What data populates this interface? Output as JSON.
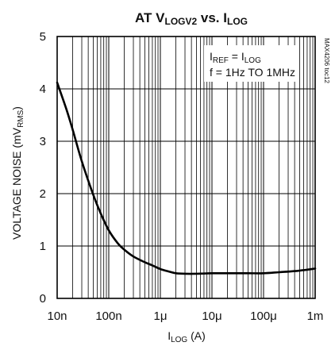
{
  "chart_data": {
    "type": "line",
    "title": {
      "prefix": "AT V",
      "sub": "LOGV2",
      "mid": " vs. I",
      "sub2": "LOG"
    },
    "ylabel": {
      "main": "VOLTAGE NOISE (mV",
      "sub": "RMS",
      "end": ")"
    },
    "xlabel": {
      "main": "I",
      "sub": "LOG",
      "end": " (A)"
    },
    "x_scale": "log",
    "xlim": [
      1e-08,
      0.001
    ],
    "ylim": [
      0,
      5
    ],
    "grid": true,
    "x_ticks": [
      {
        "value": 1e-08,
        "label": "10n"
      },
      {
        "value": 1e-07,
        "label": "100n"
      },
      {
        "value": 1e-06,
        "label": "1μ"
      },
      {
        "value": 1e-05,
        "label": "10μ"
      },
      {
        "value": 0.0001,
        "label": "100μ"
      },
      {
        "value": 0.001,
        "label": "1m"
      }
    ],
    "y_ticks": [
      {
        "value": 0,
        "label": "0"
      },
      {
        "value": 1,
        "label": "1"
      },
      {
        "value": 2,
        "label": "2"
      },
      {
        "value": 3,
        "label": "3"
      },
      {
        "value": 4,
        "label": "4"
      },
      {
        "value": 5,
        "label": "5"
      }
    ],
    "annotations": [
      {
        "main": "I",
        "sub": "REF",
        "end": " = I",
        "sub2": "LOG"
      },
      {
        "main": "f = 1Hz TO 1MHz"
      }
    ],
    "code": "MAX4206 toc12",
    "series": [
      {
        "x": [
          1e-08,
          1.5e-08,
          2e-08,
          3e-08,
          5e-08,
          7e-08,
          1e-07,
          1.5e-07,
          2e-07,
          3e-07,
          5e-07,
          7e-07,
          1e-06,
          1.5e-06,
          2e-06,
          3e-06,
          5e-06,
          1e-05,
          2e-05,
          5e-05,
          0.0001,
          0.0002,
          0.0005,
          0.001
        ],
        "y": [
          4.12,
          3.62,
          3.22,
          2.62,
          1.98,
          1.62,
          1.3,
          1.05,
          0.93,
          0.8,
          0.69,
          0.63,
          0.56,
          0.51,
          0.48,
          0.47,
          0.47,
          0.48,
          0.48,
          0.48,
          0.48,
          0.5,
          0.53,
          0.57
        ]
      }
    ]
  }
}
